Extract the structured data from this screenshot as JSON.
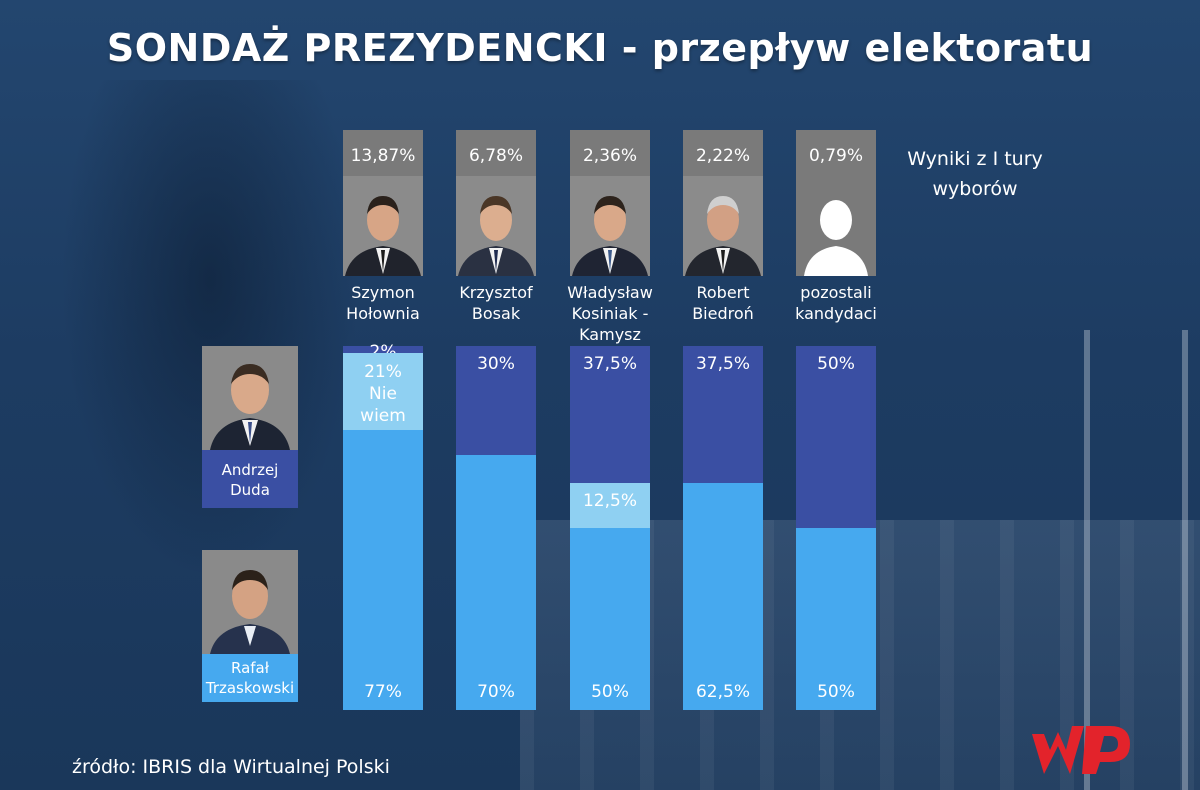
{
  "title": "SONDAŻ PREZYDENCKI - przepływ elektoratu",
  "legend_note_line1": "Wyniki z I tury",
  "legend_note_line2": "wyborów",
  "source": "źródło: IBRIS dla Wirtualnej Polski",
  "logo_icon": "wp-logo-icon",
  "colors": {
    "duda": "#3a4fa3",
    "trzaskowski": "#46a9ef",
    "nie_wiem": "#8fd0f2",
    "card": "#7a7a7a",
    "logo": "#e3232b"
  },
  "voters": [
    {
      "line1": "Andrzej",
      "line2": "Duda"
    },
    {
      "line1": "Rafał",
      "line2": "Trzaskowski"
    }
  ],
  "candidates": [
    {
      "pct": "13,87%",
      "name_lines": [
        "Szymon",
        "Hołownia",
        ""
      ]
    },
    {
      "pct": "6,78%",
      "name_lines": [
        "Krzysztof",
        "Bosak",
        ""
      ]
    },
    {
      "pct": "2,36%",
      "name_lines": [
        "Władysław",
        "Kosiniak -",
        "Kamysz"
      ]
    },
    {
      "pct": "2,22%",
      "name_lines": [
        "Robert",
        "Biedroń",
        ""
      ]
    },
    {
      "pct": "0,79%",
      "name_lines": [
        "pozostali",
        "kandydaci",
        ""
      ]
    }
  ],
  "chart_data": {
    "type": "bar",
    "stacked": true,
    "orientation": "vertical",
    "categories": [
      "Szymon Hołownia",
      "Krzysztof Bosak",
      "Władysław Kosiniak - Kamysz",
      "Robert Biedroń",
      "pozostali kandydaci"
    ],
    "first_round_results": [
      "13,87%",
      "6,78%",
      "2,36%",
      "2,22%",
      "0,79%"
    ],
    "series": [
      {
        "name": "Andrzej Duda",
        "values": [
          2,
          30,
          37.5,
          37.5,
          50
        ],
        "labels": [
          "2%",
          "30%",
          "37,5%",
          "37,5%",
          "50%"
        ]
      },
      {
        "name": "Nie wiem",
        "values": [
          21,
          0,
          12.5,
          0,
          0
        ],
        "labels": [
          "21% Nie wiem",
          "",
          "12,5%",
          "",
          ""
        ]
      },
      {
        "name": "Rafał Trzaskowski",
        "values": [
          77,
          70,
          50,
          62.5,
          50
        ],
        "labels": [
          "77%",
          "70%",
          "50%",
          "62,5%",
          "50%"
        ]
      }
    ],
    "ylim": [
      0,
      100
    ]
  }
}
